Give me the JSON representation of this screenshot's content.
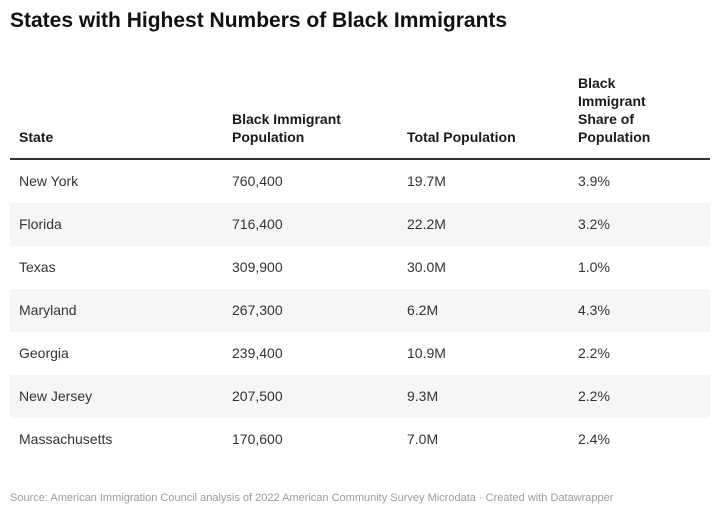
{
  "title": "States with Highest Numbers of Black Immigrants",
  "table": {
    "headers": [
      "State",
      "Black Immigrant Population",
      "Total Population",
      "Black Immigrant Share of Population"
    ],
    "rows": [
      [
        "New York",
        "760,400",
        "19.7M",
        "3.9%"
      ],
      [
        "Florida",
        "716,400",
        "22.2M",
        "3.2%"
      ],
      [
        "Texas",
        "309,900",
        "30.0M",
        "1.0%"
      ],
      [
        "Maryland",
        "267,300",
        "6.2M",
        "4.3%"
      ],
      [
        "Georgia",
        "239,400",
        "10.9M",
        "2.2%"
      ],
      [
        "New Jersey",
        "207,500",
        "9.3M",
        "2.2%"
      ],
      [
        "Massachusetts",
        "170,600",
        "7.0M",
        "2.4%"
      ]
    ]
  },
  "footer": {
    "source": "Source: American Immigration Council analysis of 2022 American Community Survey Microdata · Created with Datawrapper"
  },
  "colors": {
    "header_rule": "#333333",
    "row_stripe": "#f6f6f6",
    "body_text": "#333333",
    "footer_text": "#9b9b9b"
  },
  "chart_data": {
    "type": "table",
    "title": "States with Highest Numbers of Black Immigrants",
    "columns": [
      "State",
      "Black Immigrant Population",
      "Total Population",
      "Black Immigrant Share of Population"
    ],
    "rows": [
      [
        "New York",
        "760,400",
        "19.7M",
        "3.9%"
      ],
      [
        "Florida",
        "716,400",
        "22.2M",
        "3.2%"
      ],
      [
        "Texas",
        "309,900",
        "30.0M",
        "1.0%"
      ],
      [
        "Maryland",
        "267,300",
        "6.2M",
        "4.3%"
      ],
      [
        "Georgia",
        "239,400",
        "10.9M",
        "2.2%"
      ],
      [
        "New Jersey",
        "207,500",
        "9.3M",
        "2.2%"
      ],
      [
        "Massachusetts",
        "170,600",
        "7.0M",
        "2.4%"
      ]
    ],
    "source": "Source: American Immigration Council analysis of 2022 American Community Survey Microdata · Created with Datawrapper",
    "layout": {
      "zebra_striping": true,
      "header_rule": "2px solid dark",
      "alignment": "left"
    }
  }
}
